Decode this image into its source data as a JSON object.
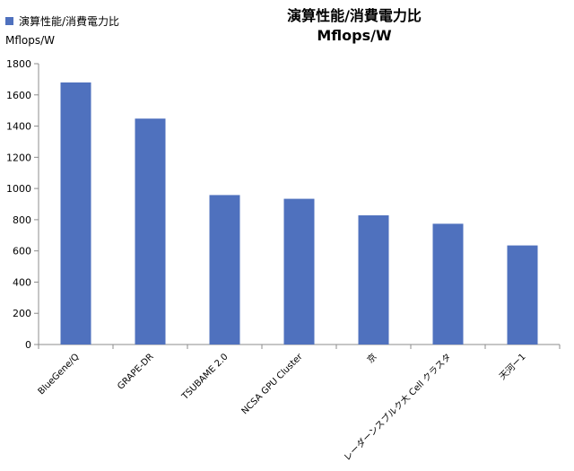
{
  "chart_data": {
    "type": "bar",
    "title": [
      "演算性能/消費電力比",
      "Mflops/W"
    ],
    "categories": [
      "BlueGene/Q",
      "GRAPE-DR",
      "TSUBAME 2.0",
      "NCSA GPU Cluster",
      "京",
      "レーダーンスブルク大 Cell クラスタ",
      "天河ー1"
    ],
    "series": [
      {
        "name": [
          "演算性能/消費電力比",
          "Mflops/W"
        ],
        "values": [
          1680,
          1448,
          958,
          934,
          828,
          774,
          635
        ]
      }
    ],
    "ylim": [
      0,
      1800
    ],
    "yticks": [
      0,
      200,
      400,
      600,
      800,
      1000,
      1200,
      1400,
      1600,
      1800
    ],
    "grid": false,
    "legend": "top-left",
    "colors": {
      "bar": "#4F71BE",
      "axis": "#8C8C8C"
    }
  }
}
